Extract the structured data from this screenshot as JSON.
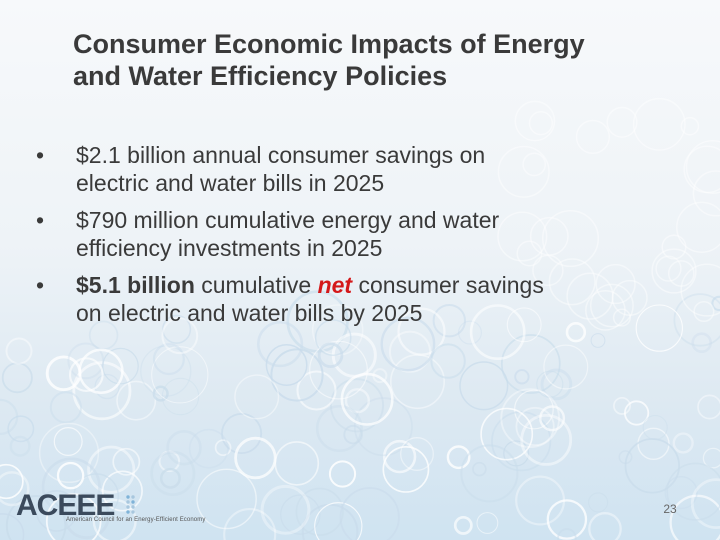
{
  "slide": {
    "title_lines": [
      "Consumer Economic Impacts of Energy",
      "and Water Efficiency Policies"
    ],
    "bullets": [
      {
        "lines": [
          "$2.1 billion annual consumer savings on",
          "electric and water bills in 2025"
        ]
      },
      {
        "lines": [
          "$790 million cumulative energy and water",
          "efficiency investments in 2025"
        ]
      },
      {
        "bold": "$5.1 billion",
        "after_bold": " cumulative ",
        "highlight": "net",
        "after_highlight": " consumer savings",
        "line2": "on electric and water bills by 2025"
      }
    ],
    "bullet_char": "•",
    "highlight_color": "#d4181a",
    "page_number": "23"
  },
  "footer": {
    "logo_text": "ACEEE",
    "logo_tagline": "American Council for an Energy-Efficient Economy",
    "logo_color": "#3b4a5c"
  }
}
